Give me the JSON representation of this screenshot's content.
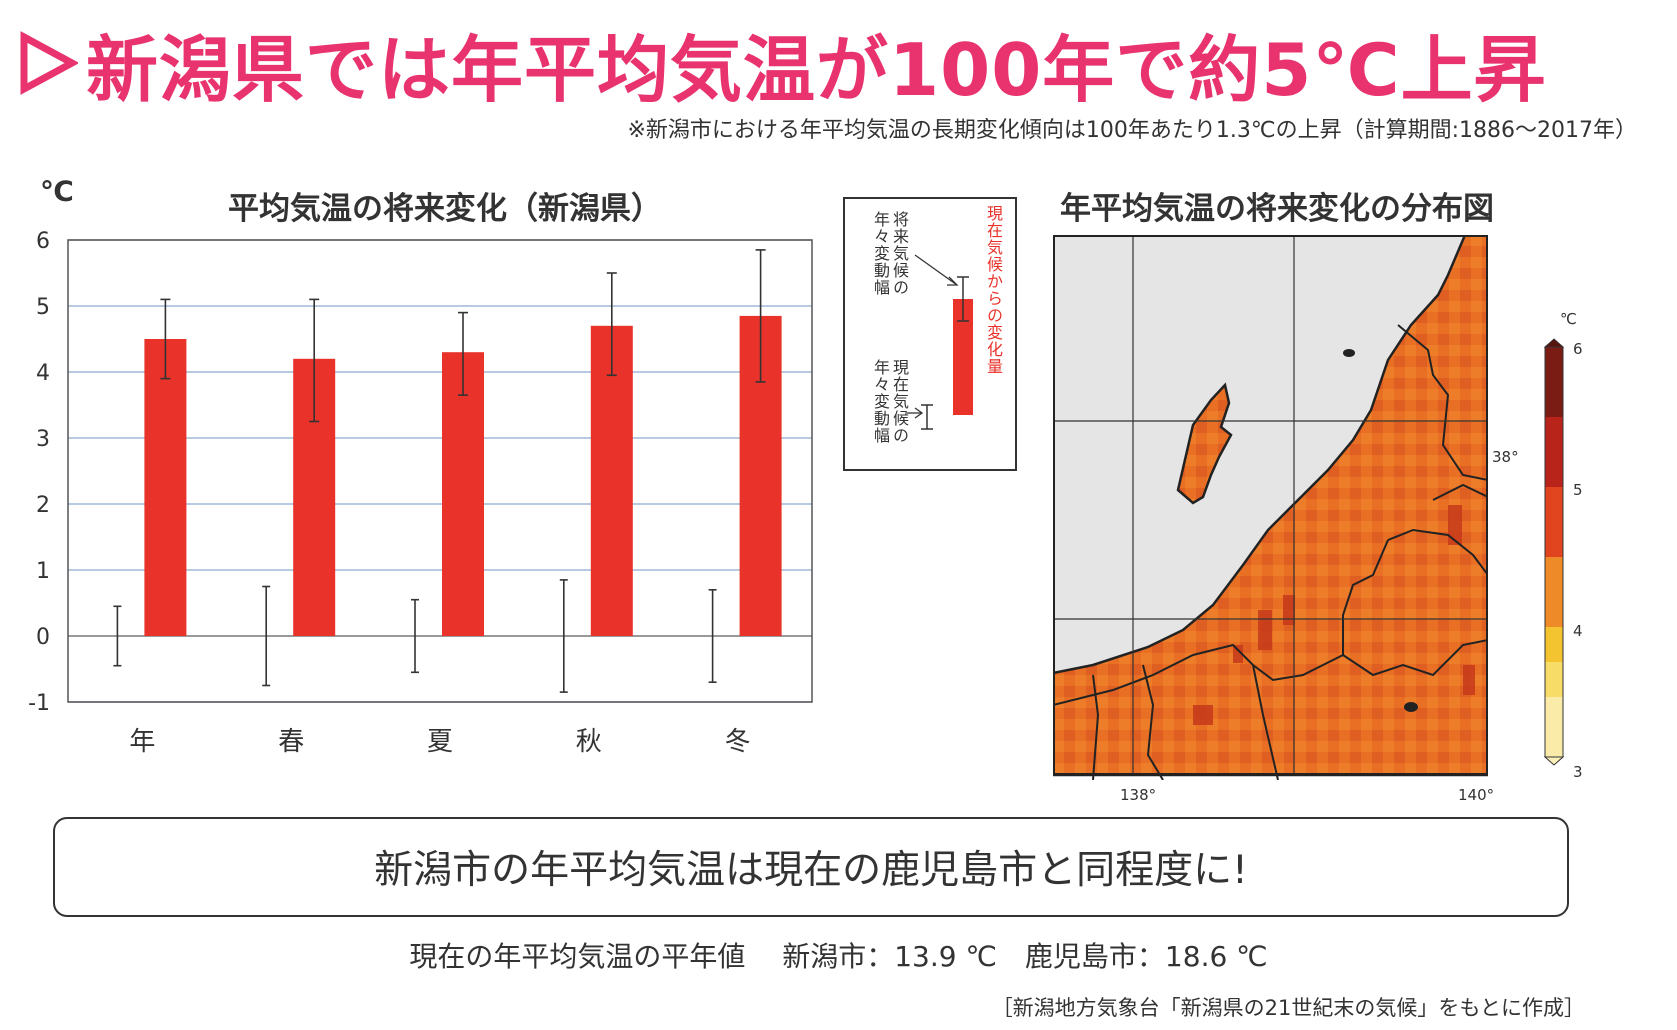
{
  "headline": {
    "text": "新潟県では年平均気温が100年で約5℃上昇",
    "color": "#e8336e"
  },
  "note": "※新潟市における年平均気温の長期変化傾向は100年あたり1.3℃の上昇（計算期間:1886〜2017年）",
  "bar_chart": {
    "unit": "℃",
    "title": "平均気温の将来変化（新潟県）"
  },
  "legend_box": {
    "label_future_var": "将来気候の年々変動幅",
    "label_present_var": "現在気候の年々変動幅",
    "label_change": "現在気候からの変化量",
    "label_change_color": "#e8322a"
  },
  "map": {
    "title": "年平均気温の将来変化の分布図",
    "lon_labels": [
      "138°",
      "140°"
    ],
    "lat_label": "38°",
    "colorbar_unit": "℃",
    "colorbar_ticks": [
      "6",
      "5",
      "4",
      "3"
    ]
  },
  "callout": "新潟市の年平均気温は現在の鹿児島市と同程度に!",
  "current_values": "現在の年平均気温の平年値　 新潟市：13.9 ℃　鹿児島市：18.6 ℃",
  "source": "［新潟地方気象台「新潟県の21世紀末の気候」をもとに作成］",
  "chart_data": {
    "type": "bar",
    "categories": [
      "年",
      "春",
      "夏",
      "秋",
      "冬"
    ],
    "series": [
      {
        "values": [
          4.5,
          4.2,
          4.3,
          4.7,
          4.85
        ],
        "err_low": [
          3.9,
          3.25,
          3.65,
          3.95,
          3.85
        ],
        "err_high": [
          5.1,
          5.1,
          4.9,
          5.5,
          5.85
        ],
        "color": "#e8322a"
      }
    ],
    "present_variability": {
      "low": [
        -0.45,
        -0.75,
        -0.55,
        -0.85,
        -0.7
      ],
      "high": [
        0.45,
        0.75,
        0.55,
        0.85,
        0.7
      ]
    },
    "ylim": [
      -1,
      6
    ],
    "yticks": [
      6,
      5,
      4,
      3,
      2,
      1,
      0,
      -1
    ],
    "ylabel": "℃",
    "title": "平均気温の将来変化（新潟県）",
    "grid": true
  }
}
